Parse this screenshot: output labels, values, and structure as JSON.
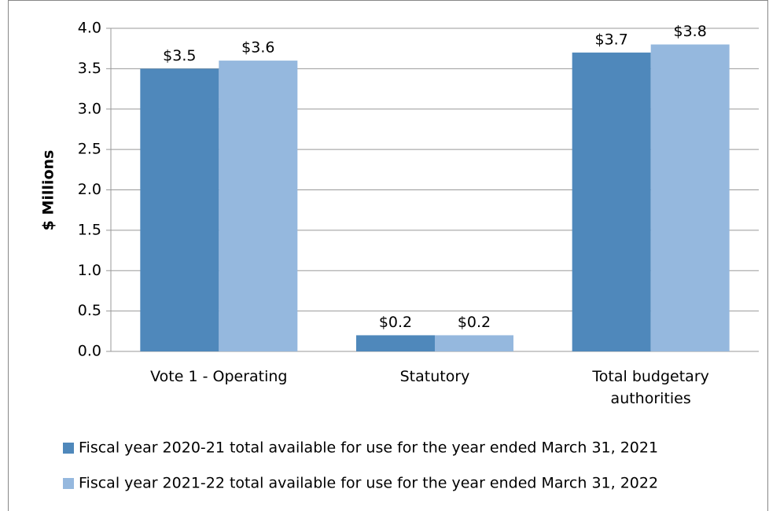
{
  "chart_data": {
    "type": "bar",
    "y_label": "$ Millions",
    "categories": [
      "Vote 1 - Operating",
      "Statutory",
      "Total budgetary authorities"
    ],
    "series": [
      {
        "name": "Fiscal year 2020-21 total available for use for the year ended March 31, 2021",
        "color": "#4f88bb",
        "values": [
          3.5,
          0.2,
          3.7
        ],
        "value_labels": [
          "$3.5",
          "$0.2",
          "$3.7"
        ]
      },
      {
        "name": "Fiscal year 2021-22 total available for use for the year ended March 31, 2022",
        "color": "#95b8de",
        "values": [
          3.6,
          0.2,
          3.8
        ],
        "value_labels": [
          "$3.6",
          "$0.2",
          "$3.8"
        ]
      }
    ],
    "ylim": [
      0,
      4
    ],
    "yticks": [
      {
        "value": 0,
        "label": "0.0"
      },
      {
        "value": 0.5,
        "label": "0.5"
      },
      {
        "value": 1,
        "label": "1.0"
      },
      {
        "value": 1.5,
        "label": "1.5"
      },
      {
        "value": 2,
        "label": "2.0"
      },
      {
        "value": 2.5,
        "label": "2.5"
      },
      {
        "value": 3,
        "label": "3.0"
      },
      {
        "value": 3.5,
        "label": "3.5"
      },
      {
        "value": 4,
        "label": "4.0"
      }
    ],
    "grid": true
  }
}
